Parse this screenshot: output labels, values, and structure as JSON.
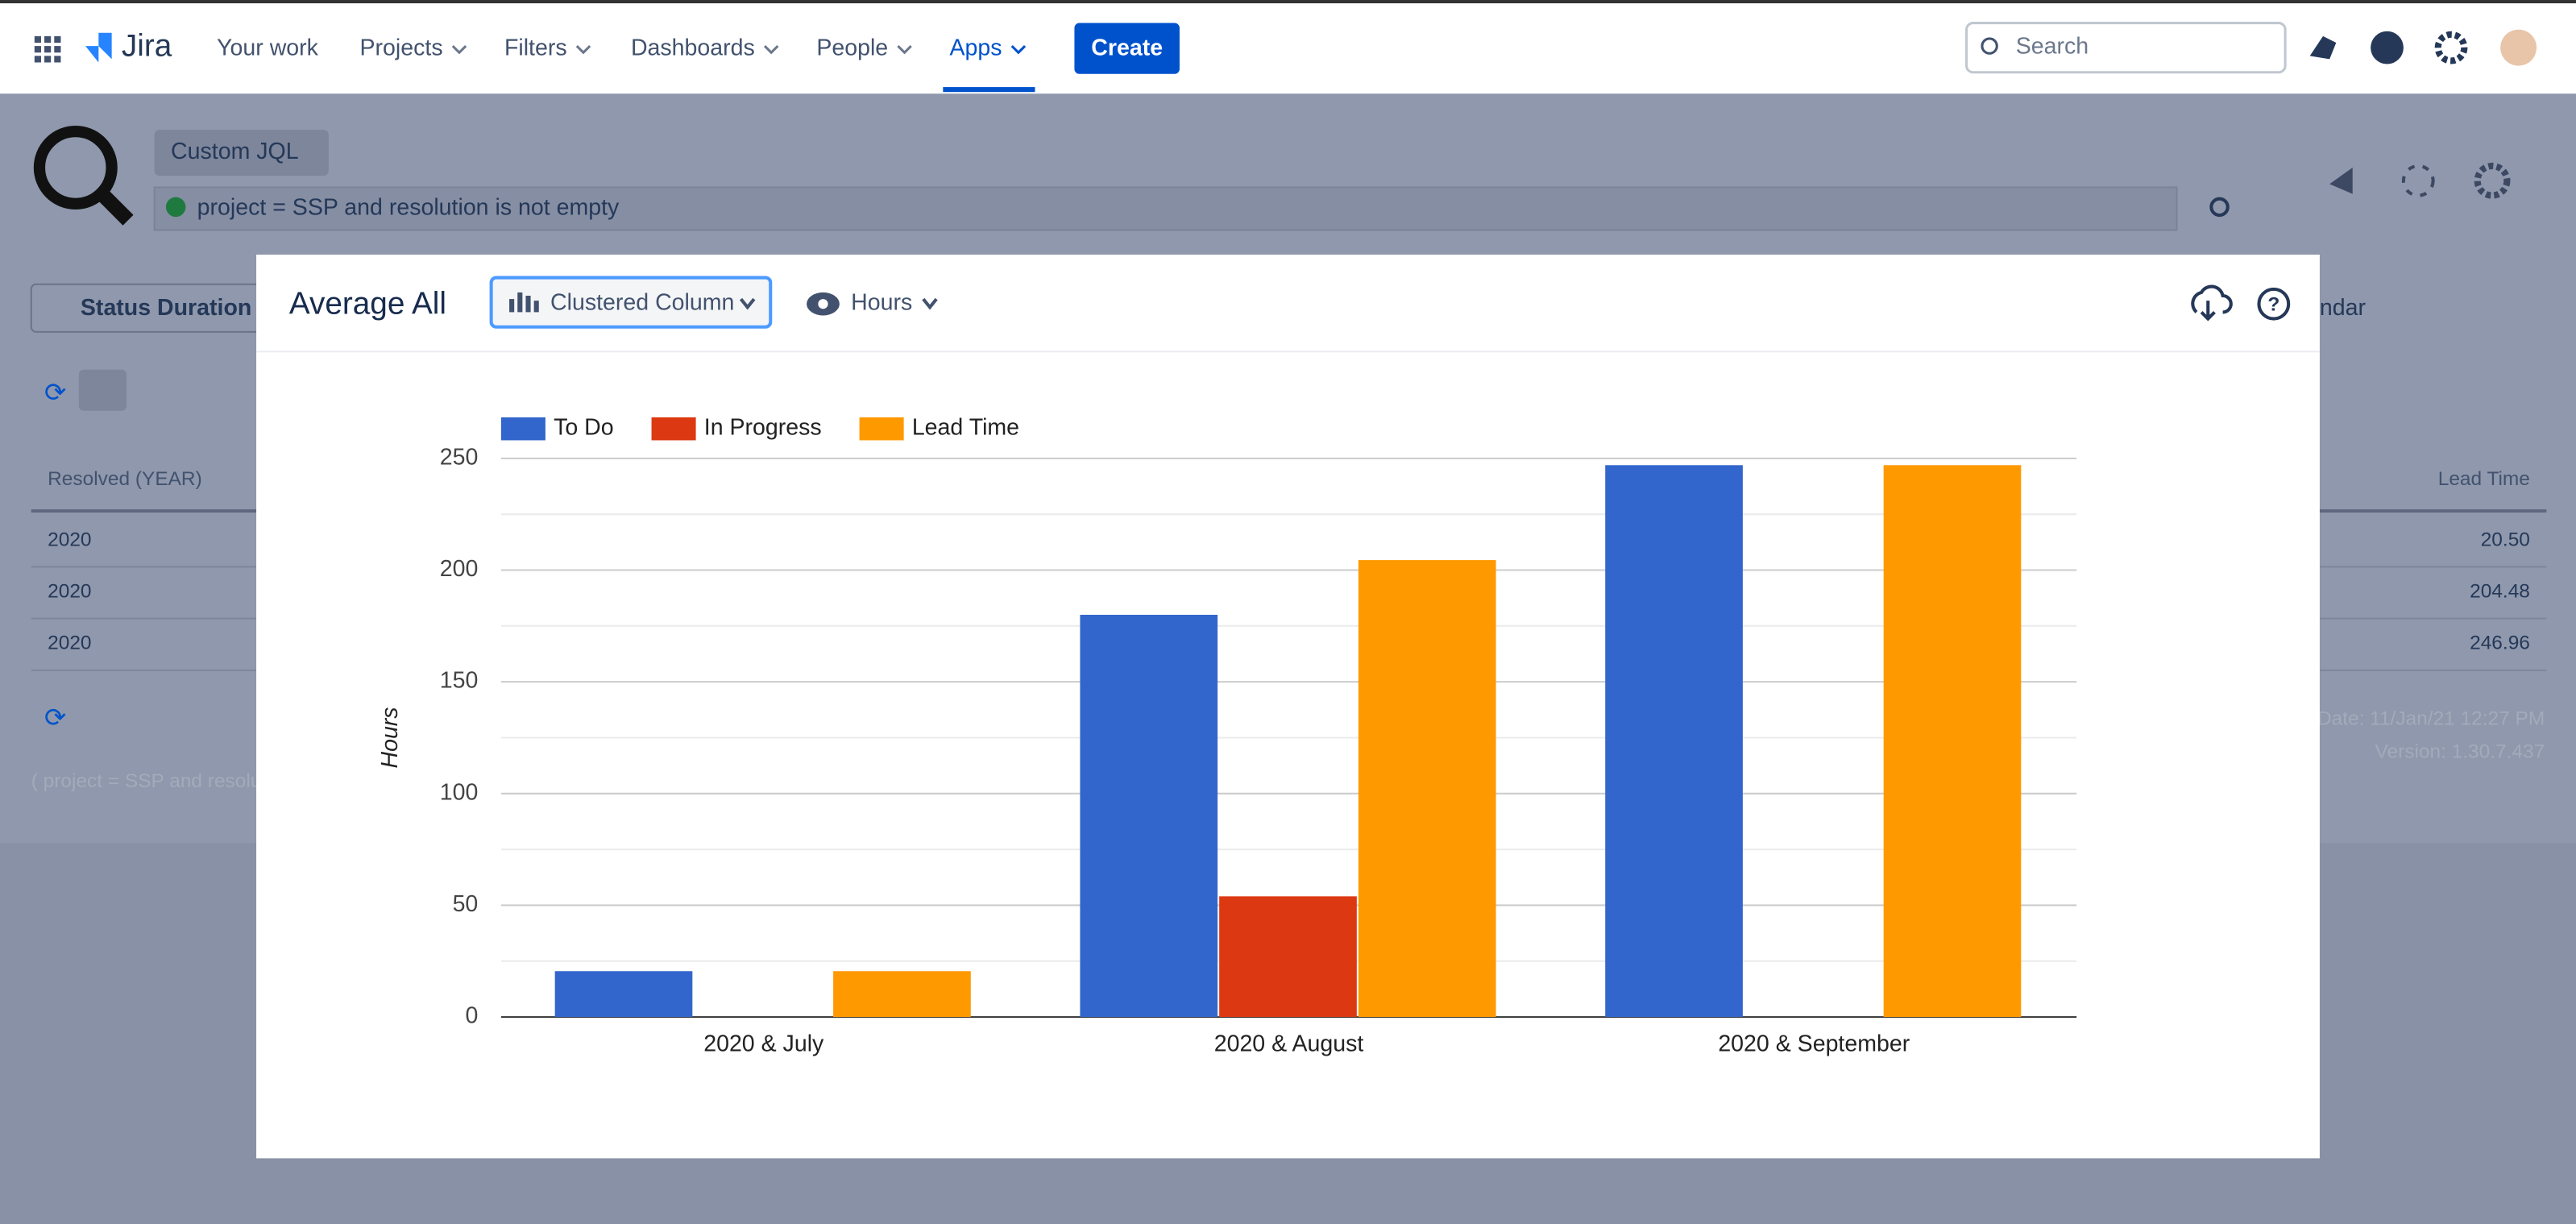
{
  "nav": {
    "logo": "Jira",
    "items": [
      "Your work",
      "Projects",
      "Filters",
      "Dashboards",
      "People",
      "Apps"
    ],
    "create": "Create",
    "search": "Search"
  },
  "page": {
    "jql_mode": "Custom JQL",
    "query": "project = SSP and resolution is not empty",
    "tab": "Status Duration",
    "tab_right": "ndar",
    "table": {
      "headers": [
        "Resolved (YEAR)",
        "Lead Time"
      ],
      "rows": [
        [
          "2020",
          "20.50"
        ],
        [
          "2020",
          "204.48"
        ],
        [
          "2020",
          "246.96"
        ]
      ]
    },
    "footer_query": "( project = SSP and resolut",
    "date": "Date: 11/Jan/21 12:27 PM",
    "version": "Version: 1.30.7.437"
  },
  "modal": {
    "title": "Average All",
    "chart_type": "Clustered Column",
    "unit": "Hours"
  },
  "chart_data": {
    "type": "bar",
    "y_label": "Hours",
    "categories": [
      "2020 & July",
      "2020 & August",
      "2020 & September"
    ],
    "series": [
      {
        "name": "To Do",
        "color": "#3366cc",
        "values": [
          20.5,
          180,
          246.96
        ]
      },
      {
        "name": "In Progress",
        "color": "#dc3912",
        "values": [
          null,
          54,
          null
        ]
      },
      {
        "name": "Lead Time",
        "color": "#ff9900",
        "values": [
          20.5,
          204.48,
          246.96
        ]
      }
    ],
    "ylim": [
      0,
      250
    ],
    "yticks": [
      0,
      50,
      100,
      150,
      200,
      250
    ],
    "grid": true,
    "legend": "top"
  }
}
